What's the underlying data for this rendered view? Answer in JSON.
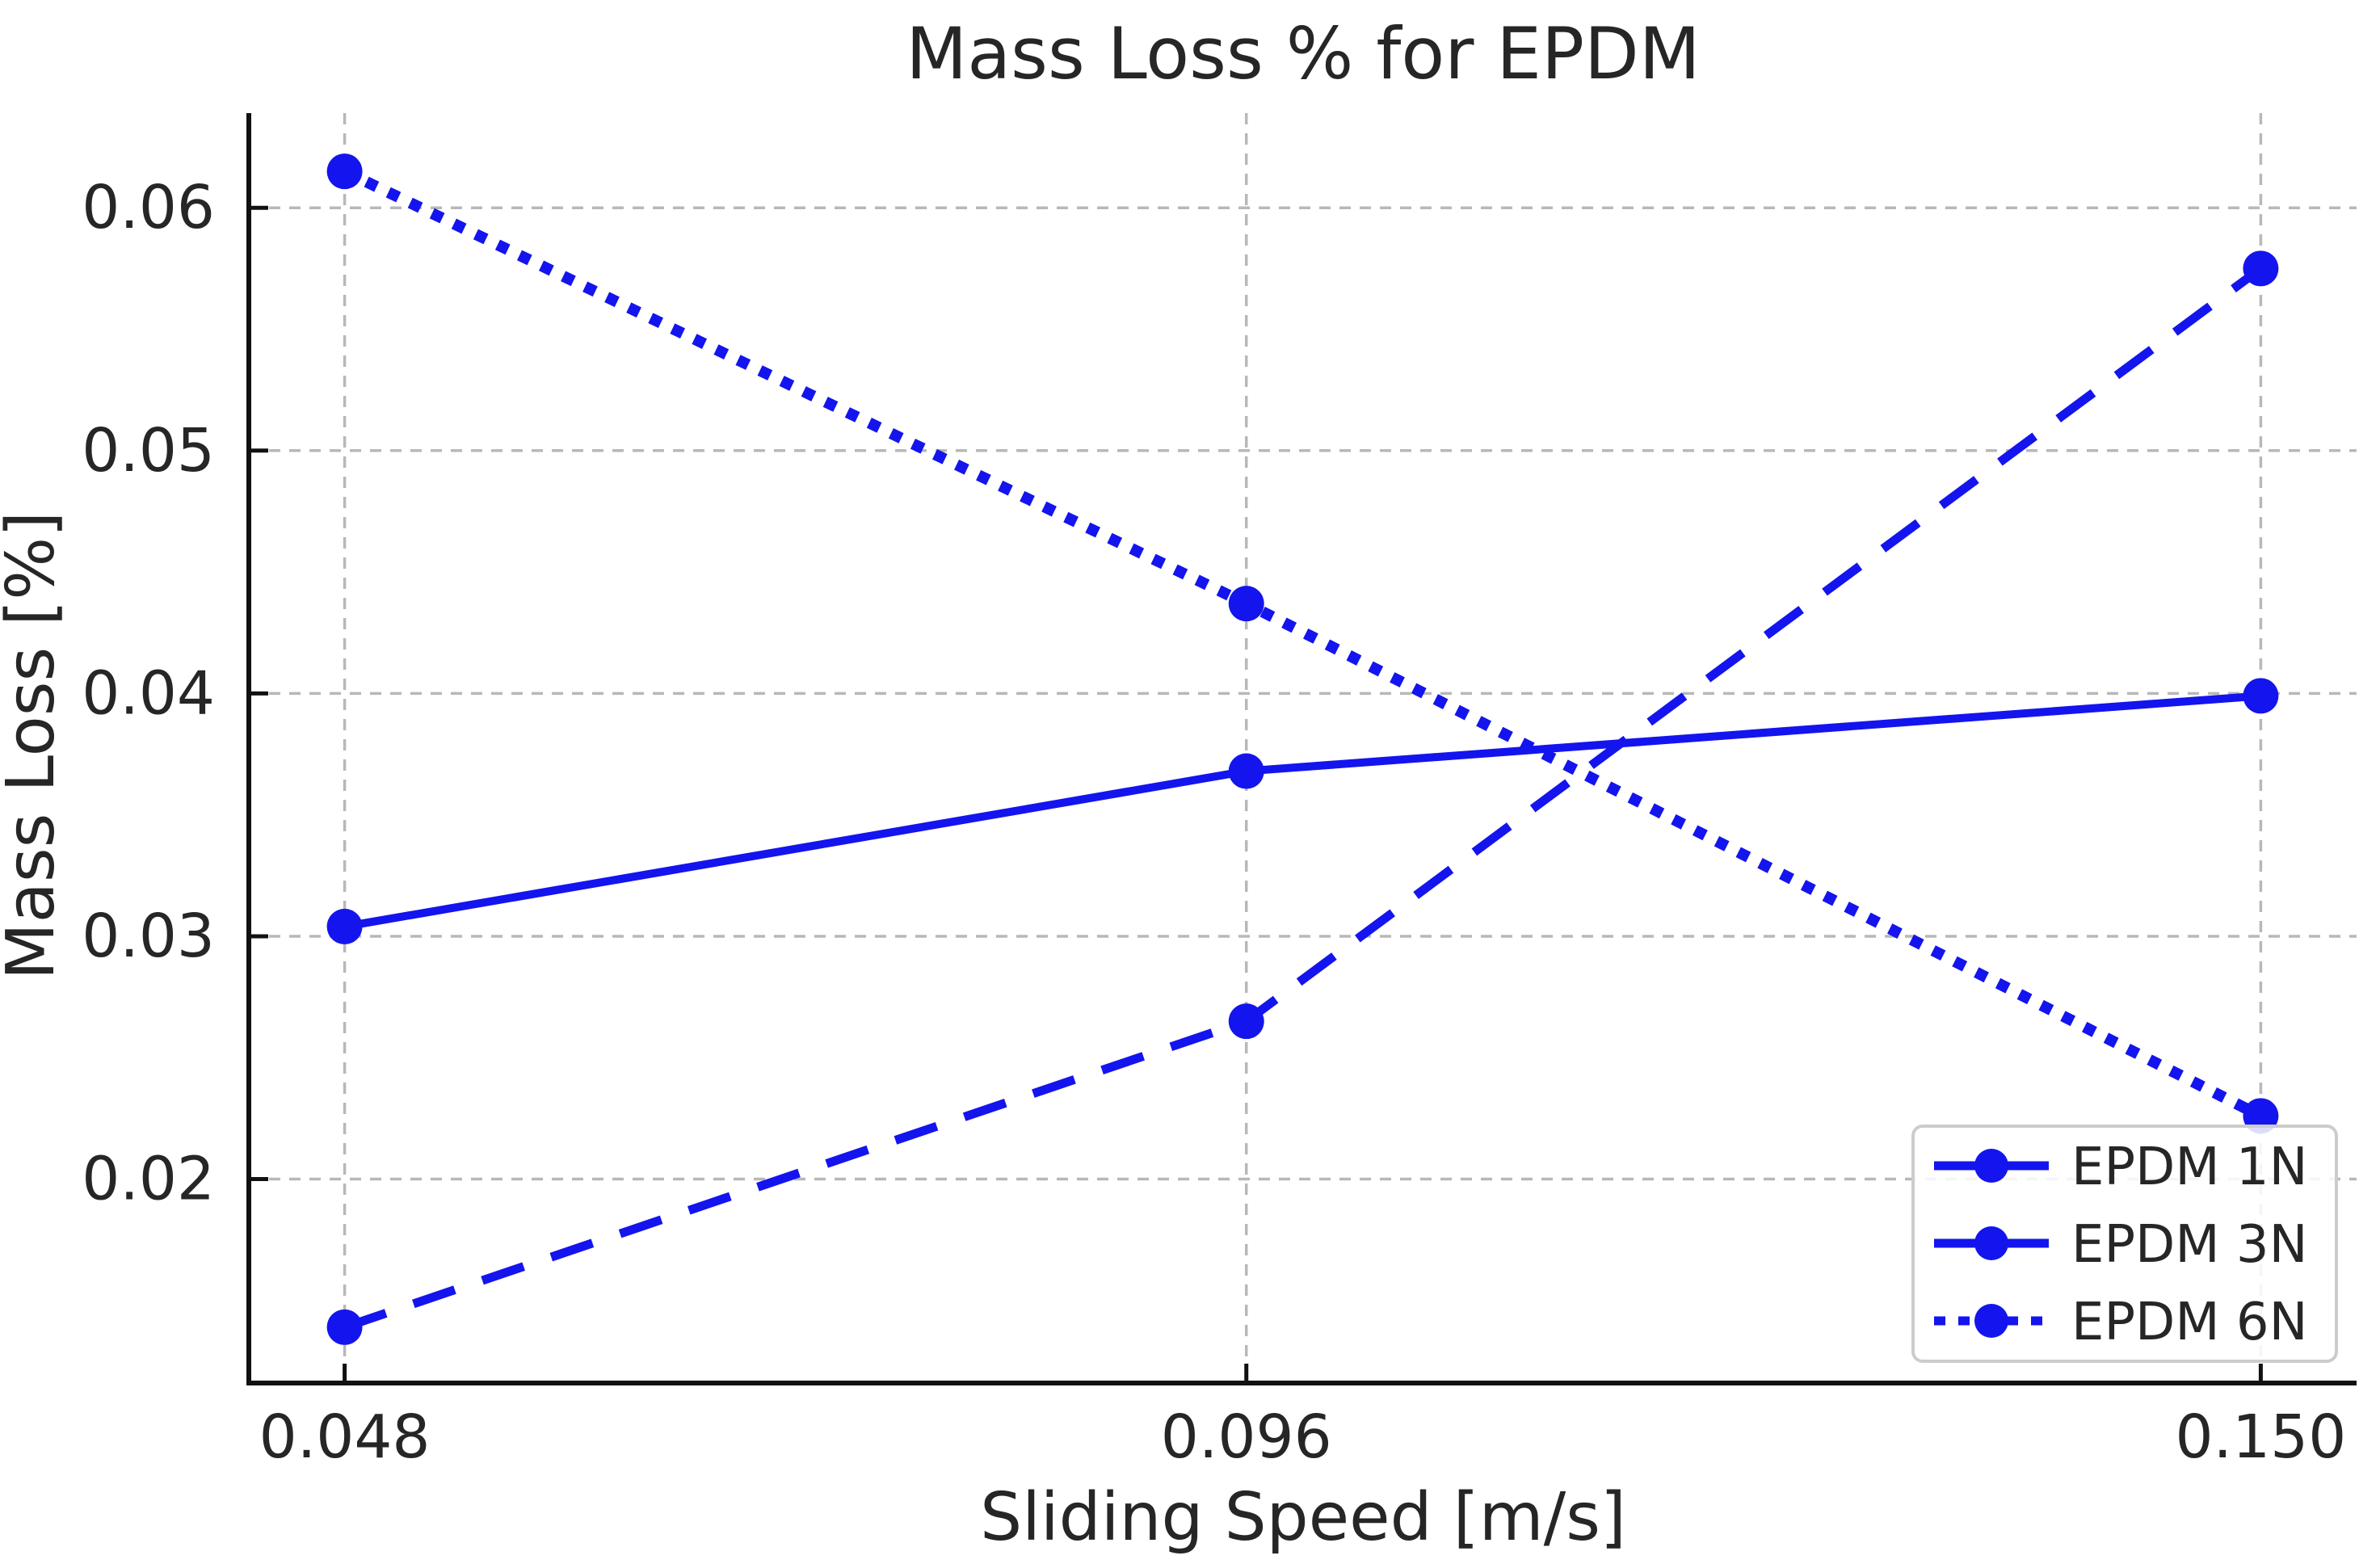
{
  "chart_data": {
    "type": "line",
    "title": "Mass Loss % for EPDM",
    "xlabel": "Sliding Speed [m/s]",
    "ylabel": "Mass Loss [%]",
    "x": [
      0.048,
      0.096,
      0.15
    ],
    "x_tick_labels": [
      "0.048",
      "0.096",
      "0.150"
    ],
    "y_ticks": [
      0.02,
      0.03,
      0.04,
      0.05,
      0.06
    ],
    "y_tick_labels": [
      "0.02",
      "0.03",
      "0.04",
      "0.05",
      "0.06"
    ],
    "xlim": [
      0.0429,
      0.1551
    ],
    "ylim": [
      0.0116,
      0.0639
    ],
    "grid": true,
    "grid_style": "dashed",
    "legend_position": "lower-right",
    "series": [
      {
        "name": "EPDM 1N",
        "line_style": "solid",
        "marker": "circle",
        "values": [
          0.0304,
          0.0368,
          0.0399
        ]
      },
      {
        "name": "EPDM 3N",
        "line_style": "dashed",
        "marker": "circle",
        "values": [
          0.0139,
          0.0265,
          0.0575
        ]
      },
      {
        "name": "EPDM 6N",
        "line_style": "dotted",
        "marker": "circle",
        "values": [
          0.0615,
          0.0437,
          0.0226
        ]
      }
    ],
    "colors": {
      "series_color": "#1414ee",
      "grid_color": "#b8b8b8",
      "axis_color": "#111111",
      "text_color": "#262626",
      "legend_border": "#cccccc",
      "legend_background": "#ffffff"
    }
  }
}
